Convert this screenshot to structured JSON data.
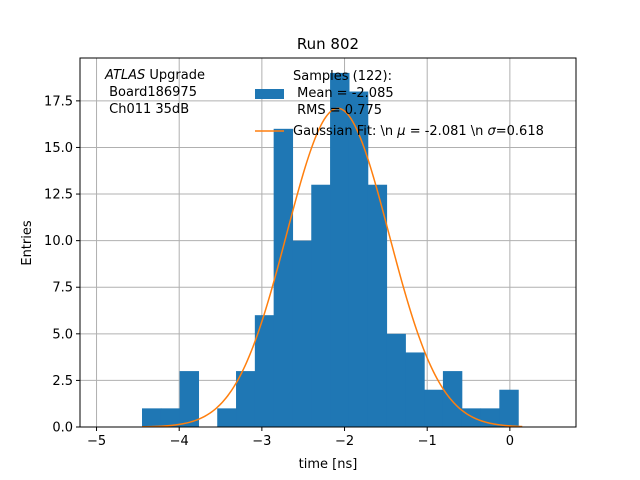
{
  "chart_data": {
    "type": "bar",
    "title": "Run 802",
    "xlabel": "time [ns]",
    "ylabel": "Entries",
    "xlim": [
      -5.2,
      0.8
    ],
    "ylim": [
      0,
      19.8
    ],
    "xticks": [
      -5,
      -4,
      -3,
      -2,
      -1,
      0
    ],
    "yticks": [
      0.0,
      2.5,
      5.0,
      7.5,
      10.0,
      12.5,
      15.0,
      17.5
    ],
    "grid": true,
    "bin_width": 0.2275,
    "bins": [
      {
        "left": -4.45,
        "count": 1
      },
      {
        "left": -4.2225,
        "count": 1
      },
      {
        "left": -3.995,
        "count": 3
      },
      {
        "left": -3.7675,
        "count": 0
      },
      {
        "left": -3.54,
        "count": 1
      },
      {
        "left": -3.3125,
        "count": 3
      },
      {
        "left": -3.085,
        "count": 6
      },
      {
        "left": -2.8575,
        "count": 16
      },
      {
        "left": -2.63,
        "count": 10
      },
      {
        "left": -2.4025,
        "count": 13
      },
      {
        "left": -2.175,
        "count": 19
      },
      {
        "left": -1.9475,
        "count": 18
      },
      {
        "left": -1.72,
        "count": 13
      },
      {
        "left": -1.4925,
        "count": 5
      },
      {
        "left": -1.265,
        "count": 4
      },
      {
        "left": -1.0375,
        "count": 2
      },
      {
        "left": -0.81,
        "count": 3
      },
      {
        "left": -0.5825,
        "count": 1
      },
      {
        "left": -0.355,
        "count": 1
      },
      {
        "left": -0.1275,
        "count": 2
      }
    ],
    "fit": {
      "amplitude": 17.1,
      "mu": -2.081,
      "sigma": 0.618,
      "x_range": [
        -4.45,
        0.15
      ]
    },
    "colors": {
      "bars": "#1f77b4",
      "fit": "#ff7f0e",
      "grid": "#b0b0b0"
    },
    "annotation": {
      "lines": [
        "ATLAS Upgrade",
        " Board186975",
        " Ch011 35dB"
      ],
      "italic_word": "ATLAS",
      "rest_of_first_line": " Upgrade"
    },
    "legend": {
      "placement": "top-center",
      "histogram_lines": [
        "Samples (122):",
        " Mean = -2.085",
        " RMS = 0.775"
      ],
      "fit_label_prefix": "Gaussian Fit: \\n ",
      "fit_mu_symbol": "μ",
      "fit_mu_text": " = -2.081 \\n ",
      "fit_sigma_symbol": "σ",
      "fit_sigma_text": "=0.618"
    }
  }
}
